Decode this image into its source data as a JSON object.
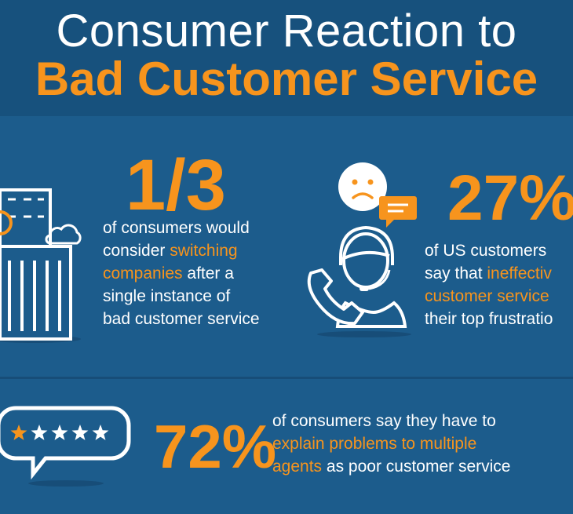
{
  "header": {
    "title_line1": "Consumer Reaction to",
    "title_line2": "Bad Customer Service"
  },
  "stats": [
    {
      "value": "1/3",
      "lines": [
        [
          {
            "t": "of consumers would",
            "hl": false
          }
        ],
        [
          {
            "t": "consider ",
            "hl": false
          },
          {
            "t": "switching",
            "hl": true
          }
        ],
        [
          {
            "t": "companies",
            "hl": true
          },
          {
            "t": " after a",
            "hl": false
          }
        ],
        [
          {
            "t": "single instance of",
            "hl": false
          }
        ],
        [
          {
            "t": "bad customer service",
            "hl": false
          }
        ]
      ]
    },
    {
      "value": "27%",
      "lines": [
        [
          {
            "t": "of US customers",
            "hl": false
          }
        ],
        [
          {
            "t": "say that ",
            "hl": false
          },
          {
            "t": "ineffectiv",
            "hl": true
          }
        ],
        [
          {
            "t": "customer service",
            "hl": true
          }
        ],
        [
          {
            "t": "their top frustratio",
            "hl": false
          }
        ]
      ]
    },
    {
      "value": "72%",
      "lines": [
        [
          {
            "t": "of consumers say they have to",
            "hl": false
          }
        ],
        [
          {
            "t": "explain problems to multiple",
            "hl": true
          }
        ],
        [
          {
            "t": "agents",
            "hl": true
          },
          {
            "t": " as poor customer service",
            "hl": false
          }
        ]
      ]
    }
  ],
  "icons": [
    "office-building-icon",
    "cloud-icon",
    "sad-face-icon",
    "chat-bubble-icon",
    "support-agent-icon",
    "telephone-icon",
    "star-rating-bubble-icon"
  ],
  "rating": {
    "filled": 1,
    "total": 5
  },
  "colors": {
    "background": "#1c5c8c",
    "header": "#17517d",
    "accent": "#f7941d",
    "text": "#ffffff"
  }
}
